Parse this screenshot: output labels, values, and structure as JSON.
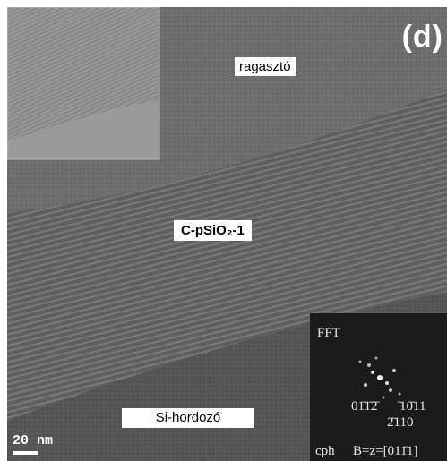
{
  "panel_letter": "(d)",
  "labels": {
    "adhesive": "ragasztó",
    "film": "C-pSiO₂-1",
    "substrate": "Si-hordozó"
  },
  "scale_bar": {
    "label": "20 nm"
  },
  "fft_inset": {
    "title": "FFT",
    "index_left": "01̄1̄2̄",
    "index_right": "̄10̄11",
    "index_bottom": "2̄110",
    "phase": "cph",
    "zone_axis": "B=z=[011̄1]"
  }
}
